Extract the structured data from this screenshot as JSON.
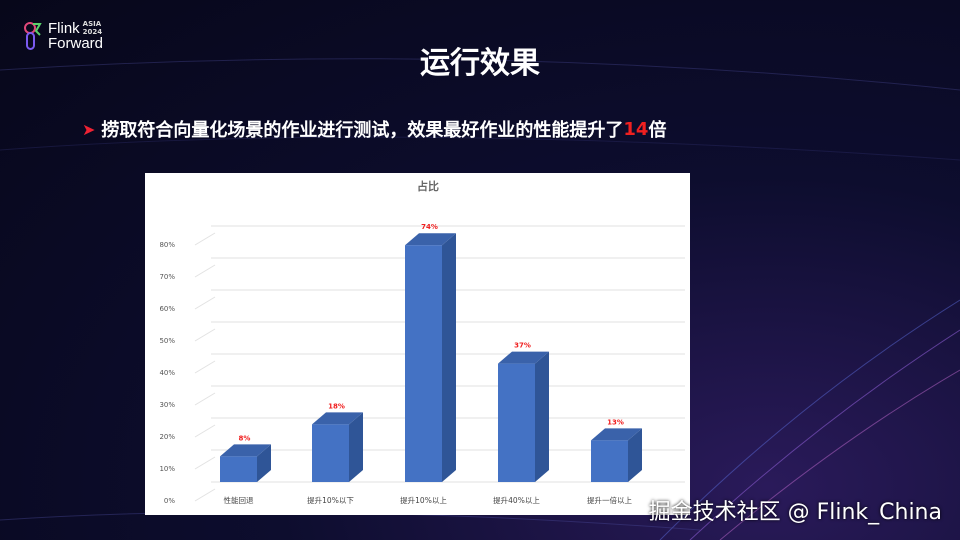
{
  "logo": {
    "line1": "Flink",
    "line2": "Forward",
    "tag": "ASIA",
    "year": "2024"
  },
  "slide": {
    "title": "运行效果",
    "bullet_prefix": "捞取符合向量化场景的作业进行测试，效果最好作业的性能提升了",
    "bullet_highlight": "14",
    "bullet_suffix": "倍"
  },
  "colors": {
    "accent": "#f02020",
    "bar": "#4472c4",
    "bar_side": "#2f5597",
    "bar_top": "#3a62aa"
  },
  "chart_data": {
    "type": "bar",
    "title": "占比",
    "categories": [
      "性能回退",
      "提升10%以下",
      "提升10%以上",
      "提升40%以上",
      "提升一倍以上"
    ],
    "values": [
      8,
      18,
      74,
      37,
      13
    ],
    "data_labels": [
      "8%",
      "18%",
      "74%",
      "37%",
      "13%"
    ],
    "yticks": [
      "0%",
      "10%",
      "20%",
      "30%",
      "40%",
      "50%",
      "60%",
      "70%",
      "80%"
    ],
    "ylim": [
      0,
      80
    ],
    "grid": true,
    "style": "3d"
  },
  "watermark": "掘金技术社区 @ Flink_China"
}
